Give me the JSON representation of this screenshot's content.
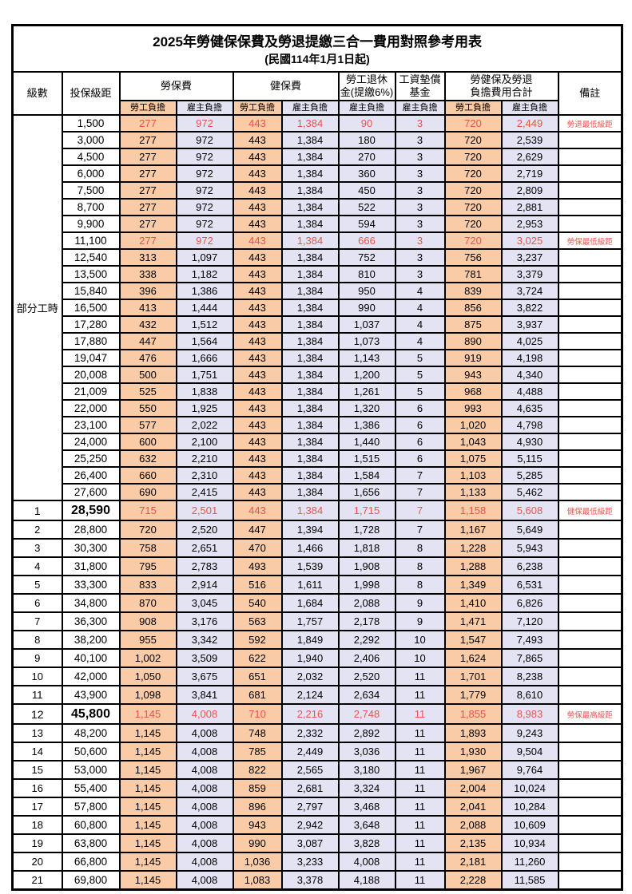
{
  "title": {
    "line1": "2025年勞健保保費及勞退提繳三合一費用對照參考用表",
    "line2": "(民國114年1月1日起)"
  },
  "header": {
    "level": "級數",
    "bracket": "投保級距",
    "labor_insurance": "勞保費",
    "health_insurance": "健保費",
    "pension_line1": "勞工退休",
    "pension_line2": "金(提繳6%)",
    "wage_fund_line1": "工資墊償",
    "wage_fund_line2": "基金",
    "total_line1": "勞健保及勞退",
    "total_line2": "負擔費用合計",
    "employee_label": "勞工負擔",
    "employer_label": "雇主負擔",
    "remark": "備註"
  },
  "colors": {
    "employee_bg": "#F9CBA6",
    "employer_bg": "#E4E3F3",
    "highlight_red": "#EA534D"
  },
  "part_time_label": "部分工時",
  "rows": {
    "part_time": [
      {
        "bracket": "1,500",
        "v": [
          "277",
          "972",
          "443",
          "1,384",
          "90",
          "3",
          "720",
          "2,449"
        ],
        "remark": "勞退最低級距",
        "red": true
      },
      {
        "bracket": "3,000",
        "v": [
          "277",
          "972",
          "443",
          "1,384",
          "180",
          "3",
          "720",
          "2,539"
        ],
        "remark": "",
        "red": false
      },
      {
        "bracket": "4,500",
        "v": [
          "277",
          "972",
          "443",
          "1,384",
          "270",
          "3",
          "720",
          "2,629"
        ],
        "remark": "",
        "red": false
      },
      {
        "bracket": "6,000",
        "v": [
          "277",
          "972",
          "443",
          "1,384",
          "360",
          "3",
          "720",
          "2,719"
        ],
        "remark": "",
        "red": false
      },
      {
        "bracket": "7,500",
        "v": [
          "277",
          "972",
          "443",
          "1,384",
          "450",
          "3",
          "720",
          "2,809"
        ],
        "remark": "",
        "red": false
      },
      {
        "bracket": "8,700",
        "v": [
          "277",
          "972",
          "443",
          "1,384",
          "522",
          "3",
          "720",
          "2,881"
        ],
        "remark": "",
        "red": false
      },
      {
        "bracket": "9,900",
        "v": [
          "277",
          "972",
          "443",
          "1,384",
          "594",
          "3",
          "720",
          "2,953"
        ],
        "remark": "",
        "red": false
      },
      {
        "bracket": "11,100",
        "v": [
          "277",
          "972",
          "443",
          "1,384",
          "666",
          "3",
          "720",
          "3,025"
        ],
        "remark": "勞保最低級距",
        "red": true
      },
      {
        "bracket": "12,540",
        "v": [
          "313",
          "1,097",
          "443",
          "1,384",
          "752",
          "3",
          "756",
          "3,237"
        ],
        "remark": "",
        "red": false
      },
      {
        "bracket": "13,500",
        "v": [
          "338",
          "1,182",
          "443",
          "1,384",
          "810",
          "3",
          "781",
          "3,379"
        ],
        "remark": "",
        "red": false
      },
      {
        "bracket": "15,840",
        "v": [
          "396",
          "1,386",
          "443",
          "1,384",
          "950",
          "4",
          "839",
          "3,724"
        ],
        "remark": "",
        "red": false
      },
      {
        "bracket": "16,500",
        "v": [
          "413",
          "1,444",
          "443",
          "1,384",
          "990",
          "4",
          "856",
          "3,822"
        ],
        "remark": "",
        "red": false
      },
      {
        "bracket": "17,280",
        "v": [
          "432",
          "1,512",
          "443",
          "1,384",
          "1,037",
          "4",
          "875",
          "3,937"
        ],
        "remark": "",
        "red": false
      },
      {
        "bracket": "17,880",
        "v": [
          "447",
          "1,564",
          "443",
          "1,384",
          "1,073",
          "4",
          "890",
          "4,025"
        ],
        "remark": "",
        "red": false
      },
      {
        "bracket": "19,047",
        "v": [
          "476",
          "1,666",
          "443",
          "1,384",
          "1,143",
          "5",
          "919",
          "4,198"
        ],
        "remark": "",
        "red": false
      },
      {
        "bracket": "20,008",
        "v": [
          "500",
          "1,751",
          "443",
          "1,384",
          "1,200",
          "5",
          "943",
          "4,340"
        ],
        "remark": "",
        "red": false
      },
      {
        "bracket": "21,009",
        "v": [
          "525",
          "1,838",
          "443",
          "1,384",
          "1,261",
          "5",
          "968",
          "4,488"
        ],
        "remark": "",
        "red": false
      },
      {
        "bracket": "22,000",
        "v": [
          "550",
          "1,925",
          "443",
          "1,384",
          "1,320",
          "6",
          "993",
          "4,635"
        ],
        "remark": "",
        "red": false
      },
      {
        "bracket": "23,100",
        "v": [
          "577",
          "2,022",
          "443",
          "1,384",
          "1,386",
          "6",
          "1,020",
          "4,798"
        ],
        "remark": "",
        "red": false
      },
      {
        "bracket": "24,000",
        "v": [
          "600",
          "2,100",
          "443",
          "1,384",
          "1,440",
          "6",
          "1,043",
          "4,930"
        ],
        "remark": "",
        "red": false
      },
      {
        "bracket": "25,250",
        "v": [
          "632",
          "2,210",
          "443",
          "1,384",
          "1,515",
          "6",
          "1,075",
          "5,115"
        ],
        "remark": "",
        "red": false
      },
      {
        "bracket": "26,400",
        "v": [
          "660",
          "2,310",
          "443",
          "1,384",
          "1,584",
          "7",
          "1,103",
          "5,285"
        ],
        "remark": "",
        "red": false
      },
      {
        "bracket": "27,600",
        "v": [
          "690",
          "2,415",
          "443",
          "1,384",
          "1,656",
          "7",
          "1,133",
          "5,462"
        ],
        "remark": "",
        "red": false
      }
    ],
    "levels": [
      {
        "level": "1",
        "bracket": "28,590",
        "v": [
          "715",
          "2,501",
          "443",
          "1,384",
          "1,715",
          "7",
          "1,158",
          "5,608"
        ],
        "remark": "健保最低級距",
        "red": true,
        "big": true
      },
      {
        "level": "2",
        "bracket": "28,800",
        "v": [
          "720",
          "2,520",
          "447",
          "1,394",
          "1,728",
          "7",
          "1,167",
          "5,649"
        ],
        "remark": "",
        "red": false,
        "big": false
      },
      {
        "level": "3",
        "bracket": "30,300",
        "v": [
          "758",
          "2,651",
          "470",
          "1,466",
          "1,818",
          "8",
          "1,228",
          "5,943"
        ],
        "remark": "",
        "red": false,
        "big": false
      },
      {
        "level": "4",
        "bracket": "31,800",
        "v": [
          "795",
          "2,783",
          "493",
          "1,539",
          "1,908",
          "8",
          "1,288",
          "6,238"
        ],
        "remark": "",
        "red": false,
        "big": false
      },
      {
        "level": "5",
        "bracket": "33,300",
        "v": [
          "833",
          "2,914",
          "516",
          "1,611",
          "1,998",
          "8",
          "1,349",
          "6,531"
        ],
        "remark": "",
        "red": false,
        "big": false
      },
      {
        "level": "6",
        "bracket": "34,800",
        "v": [
          "870",
          "3,045",
          "540",
          "1,684",
          "2,088",
          "9",
          "1,410",
          "6,826"
        ],
        "remark": "",
        "red": false,
        "big": false
      },
      {
        "level": "7",
        "bracket": "36,300",
        "v": [
          "908",
          "3,176",
          "563",
          "1,757",
          "2,178",
          "9",
          "1,471",
          "7,120"
        ],
        "remark": "",
        "red": false,
        "big": false
      },
      {
        "level": "8",
        "bracket": "38,200",
        "v": [
          "955",
          "3,342",
          "592",
          "1,849",
          "2,292",
          "10",
          "1,547",
          "7,493"
        ],
        "remark": "",
        "red": false,
        "big": false
      },
      {
        "level": "9",
        "bracket": "40,100",
        "v": [
          "1,002",
          "3,509",
          "622",
          "1,940",
          "2,406",
          "10",
          "1,624",
          "7,865"
        ],
        "remark": "",
        "red": false,
        "big": false
      },
      {
        "level": "10",
        "bracket": "42,000",
        "v": [
          "1,050",
          "3,675",
          "651",
          "2,032",
          "2,520",
          "11",
          "1,701",
          "8,238"
        ],
        "remark": "",
        "red": false,
        "big": false
      },
      {
        "level": "11",
        "bracket": "43,900",
        "v": [
          "1,098",
          "3,841",
          "681",
          "2,124",
          "2,634",
          "11",
          "1,779",
          "8,610"
        ],
        "remark": "",
        "red": false,
        "big": false
      },
      {
        "level": "12",
        "bracket": "45,800",
        "v": [
          "1,145",
          "4,008",
          "710",
          "2,216",
          "2,748",
          "11",
          "1,855",
          "8,983"
        ],
        "remark": "勞保最高級距",
        "red": true,
        "big": true
      },
      {
        "level": "13",
        "bracket": "48,200",
        "v": [
          "1,145",
          "4,008",
          "748",
          "2,332",
          "2,892",
          "11",
          "1,893",
          "9,243"
        ],
        "remark": "",
        "red": false,
        "big": false
      },
      {
        "level": "14",
        "bracket": "50,600",
        "v": [
          "1,145",
          "4,008",
          "785",
          "2,449",
          "3,036",
          "11",
          "1,930",
          "9,504"
        ],
        "remark": "",
        "red": false,
        "big": false
      },
      {
        "level": "15",
        "bracket": "53,000",
        "v": [
          "1,145",
          "4,008",
          "822",
          "2,565",
          "3,180",
          "11",
          "1,967",
          "9,764"
        ],
        "remark": "",
        "red": false,
        "big": false
      },
      {
        "level": "16",
        "bracket": "55,400",
        "v": [
          "1,145",
          "4,008",
          "859",
          "2,681",
          "3,324",
          "11",
          "2,004",
          "10,024"
        ],
        "remark": "",
        "red": false,
        "big": false
      },
      {
        "level": "17",
        "bracket": "57,800",
        "v": [
          "1,145",
          "4,008",
          "896",
          "2,797",
          "3,468",
          "11",
          "2,041",
          "10,284"
        ],
        "remark": "",
        "red": false,
        "big": false
      },
      {
        "level": "18",
        "bracket": "60,800",
        "v": [
          "1,145",
          "4,008",
          "943",
          "2,942",
          "3,648",
          "11",
          "2,088",
          "10,609"
        ],
        "remark": "",
        "red": false,
        "big": false
      },
      {
        "level": "19",
        "bracket": "63,800",
        "v": [
          "1,145",
          "4,008",
          "990",
          "3,087",
          "3,828",
          "11",
          "2,135",
          "10,934"
        ],
        "remark": "",
        "red": false,
        "big": false
      },
      {
        "level": "20",
        "bracket": "66,800",
        "v": [
          "1,145",
          "4,008",
          "1,036",
          "3,233",
          "4,008",
          "11",
          "2,181",
          "11,260"
        ],
        "remark": "",
        "red": false,
        "big": false
      },
      {
        "level": "21",
        "bracket": "69,800",
        "v": [
          "1,145",
          "4,008",
          "1,083",
          "3,378",
          "4,188",
          "11",
          "2,228",
          "11,585"
        ],
        "remark": "",
        "red": false,
        "big": false
      }
    ]
  }
}
